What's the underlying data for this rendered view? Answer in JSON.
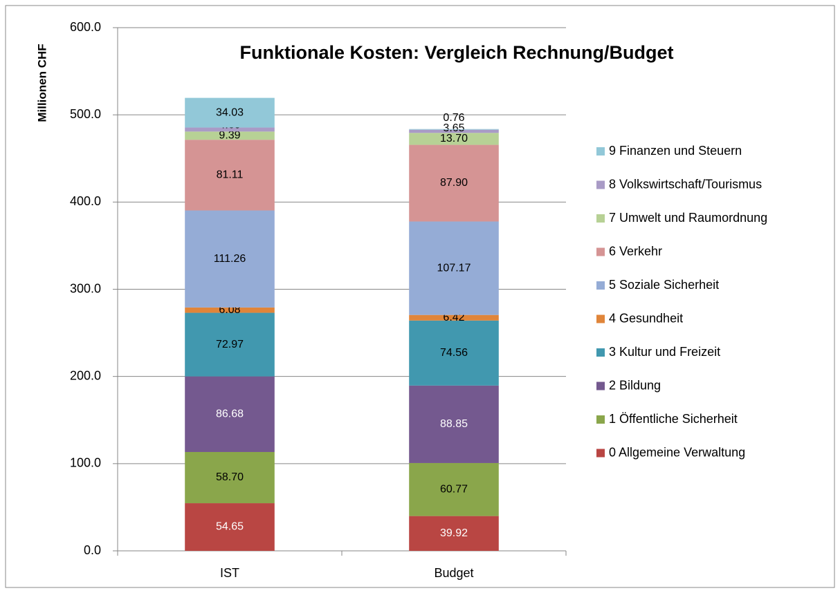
{
  "chart_data": {
    "type": "stacked_bar",
    "title": "Funktionale Kosten: Vergleich Rechnung/Budget",
    "y_label": "Millionen CHF",
    "categories": [
      "IST",
      "Budget"
    ],
    "ylim": [
      0,
      600
    ],
    "yticks": [
      {
        "value": 0,
        "label": "0.0"
      },
      {
        "value": 100,
        "label": "100.0"
      },
      {
        "value": 200,
        "label": "200.0"
      },
      {
        "value": 300,
        "label": "300.0"
      },
      {
        "value": 400,
        "label": "400.0"
      },
      {
        "value": 500,
        "label": "500.0"
      },
      {
        "value": 600,
        "label": "600.0"
      }
    ],
    "grid": true,
    "legend": "right",
    "series": [
      {
        "name": "0 Allgemeine Verwaltung",
        "color": "#b94643",
        "values": [
          54.65,
          39.92
        ],
        "value_labels": [
          "54.65",
          "39.92"
        ]
      },
      {
        "name": "1 Öffentliche Sicherheit",
        "color": "#8aa64b",
        "values": [
          58.7,
          60.77
        ],
        "value_labels": [
          "58.70",
          "60.77"
        ]
      },
      {
        "name": "2 Bildung",
        "color": "#74598f",
        "values": [
          86.68,
          88.85
        ],
        "value_labels": [
          "86.68",
          "88.85"
        ]
      },
      {
        "name": "3 Kultur und Freizeit",
        "color": "#4198af",
        "values": [
          72.97,
          74.56
        ],
        "value_labels": [
          "72.97",
          "74.56"
        ]
      },
      {
        "name": "4 Gesundheit",
        "color": "#e0853a",
        "values": [
          6.08,
          6.42
        ],
        "value_labels": [
          "6.08",
          "6.42"
        ]
      },
      {
        "name": "5 Soziale Sicherheit",
        "color": "#95acd6",
        "values": [
          111.26,
          107.17
        ],
        "value_labels": [
          "111.26",
          "107.17"
        ]
      },
      {
        "name": "6 Verkehr",
        "color": "#d59494",
        "values": [
          81.11,
          87.9
        ],
        "value_labels": [
          "81.11",
          "87.90"
        ]
      },
      {
        "name": "7 Umwelt und Raumordnung",
        "color": "#b7d195",
        "values": [
          9.39,
          13.7
        ],
        "value_labels": [
          "9.39",
          "13.70"
        ]
      },
      {
        "name": "8 Volkswirtschaft/Tourismus",
        "color": "#a99bc6",
        "values": [
          4.6,
          3.65
        ],
        "value_labels": [
          "4.60",
          "3.65"
        ]
      },
      {
        "name": "9 Finanzen und Steuern",
        "color": "#92c8d8",
        "values": [
          34.03,
          0.76
        ],
        "value_labels": [
          "34.03",
          "0.76"
        ]
      }
    ]
  }
}
